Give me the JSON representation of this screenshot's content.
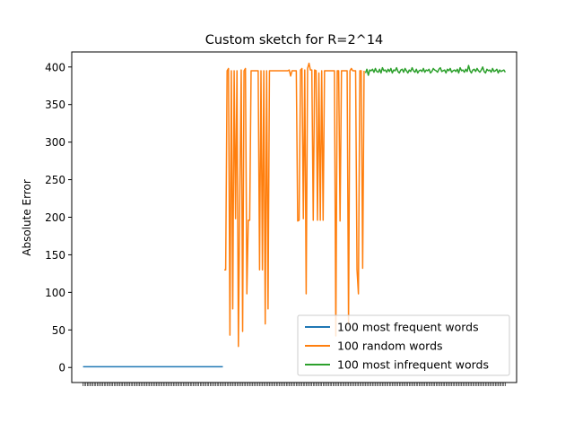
{
  "chart_data": {
    "type": "line",
    "title": "Custom sketch for R=2^14",
    "xlabel": "",
    "ylabel": "Absolute Error",
    "xlim": [
      -8,
      307
    ],
    "ylim": [
      -20,
      420
    ],
    "yticks": [
      0,
      50,
      100,
      150,
      200,
      250,
      300,
      350,
      400
    ],
    "grid": false,
    "legend": "lower-right",
    "series": [
      {
        "name": "100 most frequent words",
        "color": "#1f77b4",
        "x_start": 0,
        "values": [
          1,
          1,
          1,
          1,
          1,
          1,
          1,
          1,
          1,
          1,
          1,
          1,
          1,
          1,
          1,
          1,
          1,
          1,
          1,
          1,
          1,
          1,
          1,
          1,
          1,
          1,
          1,
          1,
          1,
          1,
          1,
          1,
          1,
          1,
          1,
          1,
          1,
          1,
          1,
          1,
          1,
          1,
          1,
          1,
          1,
          1,
          1,
          1,
          1,
          1,
          1,
          1,
          1,
          1,
          1,
          1,
          1,
          1,
          1,
          1,
          1,
          1,
          1,
          1,
          1,
          1,
          1,
          1,
          1,
          1,
          1,
          1,
          1,
          1,
          1,
          1,
          1,
          1,
          1,
          1,
          1,
          1,
          1,
          1,
          1,
          1,
          1,
          1,
          1,
          1,
          1,
          1,
          1,
          1,
          1,
          1,
          1,
          1,
          1,
          1
        ]
      },
      {
        "name": "100 random words",
        "color": "#ff7f0e",
        "x_start": 100,
        "values": [
          130,
          130,
          395,
          398,
          43,
          395,
          78,
          395,
          198,
          395,
          28,
          230,
          396,
          48,
          395,
          398,
          98,
          196,
          196,
          395,
          395,
          395,
          395,
          395,
          395,
          130,
          395,
          130,
          395,
          58,
          395,
          78,
          395,
          395,
          395,
          395,
          395,
          395,
          395,
          395,
          395,
          395,
          395,
          395,
          395,
          395,
          396,
          388,
          395,
          395,
          395,
          395,
          195,
          196,
          396,
          398,
          198,
          396,
          98,
          398,
          405,
          396,
          396,
          196,
          396,
          395,
          196,
          392,
          196,
          395,
          196,
          395,
          395,
          395,
          395,
          395,
          395,
          395,
          395,
          42,
          395,
          395,
          195,
          395,
          395,
          395,
          395,
          395,
          58,
          395,
          398,
          395,
          395,
          395,
          130,
          98,
          395,
          395,
          132,
          395
        ]
      },
      {
        "name": "100 most infrequent words",
        "color": "#2ca02c",
        "x_start": 200,
        "values": [
          392,
          397,
          389,
          396,
          395,
          397,
          393,
          398,
          394,
          393,
          397,
          392,
          399,
          395,
          396,
          393,
          397,
          394,
          398,
          392,
          396,
          395,
          399,
          394,
          392,
          396,
          397,
          393,
          398,
          395,
          392,
          396,
          394,
          399,
          395,
          393,
          397,
          392,
          395,
          396,
          394,
          398,
          393,
          396,
          395,
          397,
          392,
          394,
          398,
          396,
          395,
          393,
          397,
          399,
          394,
          395,
          396,
          392,
          397,
          395,
          398,
          393,
          395,
          396,
          394,
          397,
          392,
          399,
          395,
          396,
          393,
          397,
          394,
          402,
          395,
          392,
          396,
          397,
          394,
          398,
          395,
          393,
          396,
          400,
          394,
          392,
          397,
          395,
          396,
          393,
          398,
          394,
          395,
          397,
          392,
          396,
          394,
          395,
          396,
          393
        ]
      }
    ]
  }
}
